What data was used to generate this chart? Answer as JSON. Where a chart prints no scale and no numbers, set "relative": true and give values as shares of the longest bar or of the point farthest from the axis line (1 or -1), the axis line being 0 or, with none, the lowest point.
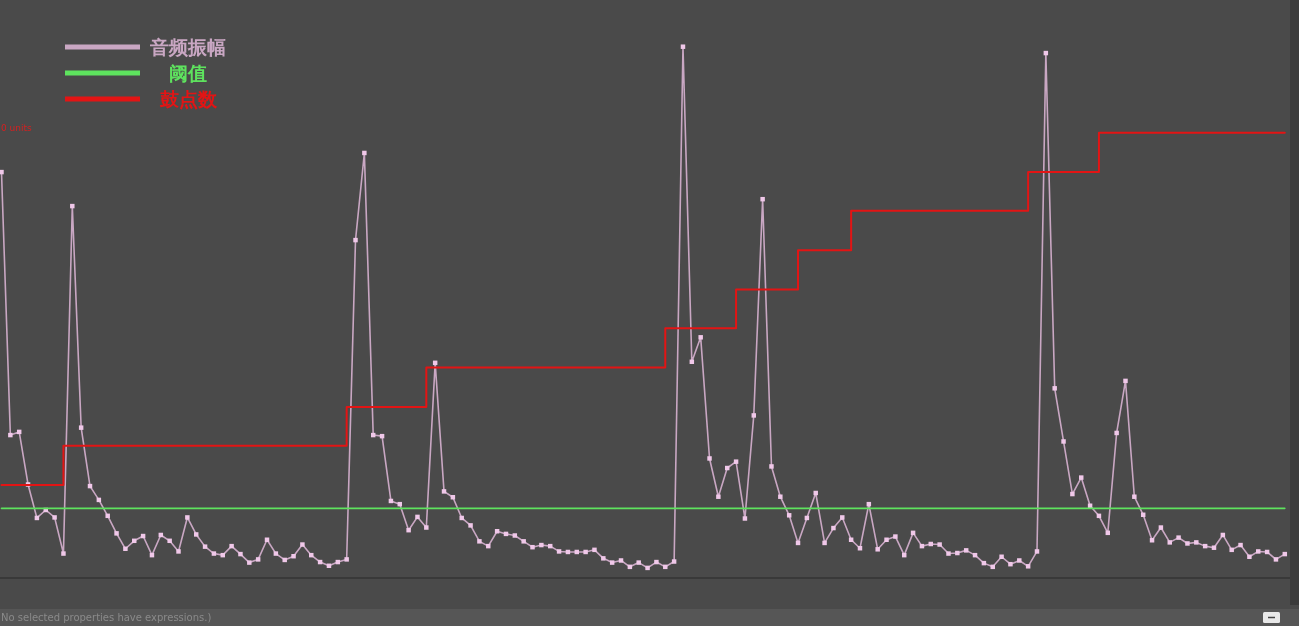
{
  "chart_data": {
    "type": "line",
    "relative": true,
    "legend": "top left",
    "annotations": [
      "0 units",
      "No selected properties have expressions.)"
    ],
    "categories": [
      null,
      null,
      null,
      null,
      null,
      null,
      null,
      null,
      null,
      null,
      null,
      null,
      null,
      null,
      null,
      null,
      null,
      null,
      null,
      null,
      null,
      null,
      null,
      null,
      null,
      null,
      null,
      null,
      null,
      null,
      null,
      null,
      null,
      null,
      null,
      null,
      null,
      null,
      null,
      null,
      null,
      null,
      null,
      null,
      null,
      null,
      null,
      null,
      null,
      null,
      null,
      null,
      null,
      null,
      null,
      null,
      null,
      null,
      null,
      null,
      null,
      null,
      null,
      null,
      null,
      null,
      null,
      null,
      null,
      null,
      null,
      null,
      null,
      null,
      null,
      null,
      null,
      null,
      null,
      null,
      null,
      null,
      null,
      null,
      null,
      null,
      null,
      null,
      null,
      null,
      null,
      null,
      null,
      null,
      null,
      null,
      null,
      null,
      null,
      null,
      null,
      null,
      null,
      null,
      null,
      null,
      null,
      null,
      null,
      null,
      null,
      null,
      null,
      null,
      null,
      null,
      null,
      null,
      null,
      null,
      null,
      null,
      null,
      null,
      null,
      null,
      null,
      null,
      null,
      null,
      null,
      null,
      null,
      null,
      null,
      null,
      null,
      null,
      null,
      null,
      null,
      null,
      null,
      null,
      null,
      null
    ],
    "series": [
      {
        "name": "音频振幅",
        "color": "#c9a7c3",
        "marker": "square",
        "values": [
          0.764,
          0.269,
          0.275,
          0.176,
          0.113,
          0.128,
          0.114,
          0.046,
          0.7,
          0.283,
          0.173,
          0.147,
          0.117,
          0.084,
          0.055,
          0.07,
          0.079,
          0.043,
          0.081,
          0.07,
          0.05,
          0.114,
          0.082,
          0.059,
          0.046,
          0.043,
          0.06,
          0.045,
          0.029,
          0.035,
          0.072,
          0.046,
          0.034,
          0.041,
          0.063,
          0.043,
          0.03,
          0.023,
          0.03,
          0.035,
          0.636,
          0.8,
          0.269,
          0.267,
          0.145,
          0.139,
          0.09,
          0.115,
          0.095,
          0.405,
          0.163,
          0.152,
          0.113,
          0.099,
          0.069,
          0.06,
          0.088,
          0.083,
          0.08,
          0.069,
          0.058,
          0.062,
          0.06,
          0.05,
          0.049,
          0.049,
          0.049,
          0.053,
          0.037,
          0.029,
          0.033,
          0.021,
          0.029,
          0.019,
          0.03,
          0.021,
          0.031,
          1,
          0.407,
          0.453,
          0.225,
          0.153,
          0.207,
          0.219,
          0.112,
          0.306,
          0.713,
          0.21,
          0.153,
          0.118,
          0.066,
          0.113,
          0.16,
          0.066,
          0.094,
          0.114,
          0.072,
          0.056,
          0.139,
          0.054,
          0.072,
          0.078,
          0.043,
          0.085,
          0.06,
          0.064,
          0.063,
          0.046,
          0.047,
          0.052,
          0.043,
          0.028,
          0.021,
          0.04,
          0.026,
          0.033,
          0.022,
          0.05,
          0.988,
          0.357,
          0.257,
          0.158,
          0.189,
          0.136,
          0.117,
          0.085,
          0.273,
          0.371,
          0.153,
          0.119,
          0.071,
          0.095,
          0.067,
          0.076,
          0.065,
          0.067,
          0.06,
          0.057,
          0.081,
          0.053,
          0.062,
          0.04,
          0.05,
          0.049,
          0.035,
          0.045
        ]
      },
      {
        "name": "阈值",
        "color": "#5ee35e",
        "values": [
          0.131,
          0.131,
          0.131,
          0.131,
          0.131,
          0.131,
          0.131,
          0.131,
          0.131,
          0.131,
          0.131,
          0.131,
          0.131,
          0.131,
          0.131,
          0.131,
          0.131,
          0.131,
          0.131,
          0.131,
          0.131,
          0.131,
          0.131,
          0.131,
          0.131,
          0.131,
          0.131,
          0.131,
          0.131,
          0.131,
          0.131,
          0.131,
          0.131,
          0.131,
          0.131,
          0.131,
          0.131,
          0.131,
          0.131,
          0.131,
          0.131,
          0.131,
          0.131,
          0.131,
          0.131,
          0.131,
          0.131,
          0.131,
          0.131,
          0.131,
          0.131,
          0.131,
          0.131,
          0.131,
          0.131,
          0.131,
          0.131,
          0.131,
          0.131,
          0.131,
          0.131,
          0.131,
          0.131,
          0.131,
          0.131,
          0.131,
          0.131,
          0.131,
          0.131,
          0.131,
          0.131,
          0.131,
          0.131,
          0.131,
          0.131,
          0.131,
          0.131,
          0.131,
          0.131,
          0.131,
          0.131,
          0.131,
          0.131,
          0.131,
          0.131,
          0.131,
          0.131,
          0.131,
          0.131,
          0.131,
          0.131,
          0.131,
          0.131,
          0.131,
          0.131,
          0.131,
          0.131,
          0.131,
          0.131,
          0.131,
          0.131,
          0.131,
          0.131,
          0.131,
          0.131,
          0.131,
          0.131,
          0.131,
          0.131,
          0.131,
          0.131,
          0.131,
          0.131,
          0.131,
          0.131,
          0.131,
          0.131,
          0.131,
          0.131,
          0.131,
          0.131,
          0.131,
          0.131,
          0.131,
          0.131,
          0.131,
          0.131,
          0.131,
          0.131,
          0.131,
          0.131,
          0.131,
          0.131,
          0.131,
          0.131,
          0.131,
          0.131,
          0.131,
          0.131,
          0.131,
          0.131,
          0.131,
          0.131,
          0.131,
          0.131,
          0.131
        ]
      },
      {
        "name": "鼓点数",
        "type": "step",
        "color": "#e31414",
        "values": [
          0.175,
          0.175,
          0.175,
          0.175,
          0.175,
          0.175,
          0.175,
          0.249,
          0.249,
          0.249,
          0.249,
          0.249,
          0.249,
          0.249,
          0.249,
          0.249,
          0.249,
          0.249,
          0.249,
          0.249,
          0.249,
          0.249,
          0.249,
          0.249,
          0.249,
          0.249,
          0.249,
          0.249,
          0.249,
          0.249,
          0.249,
          0.249,
          0.249,
          0.249,
          0.249,
          0.249,
          0.249,
          0.249,
          0.249,
          0.322,
          0.322,
          0.322,
          0.322,
          0.322,
          0.322,
          0.322,
          0.322,
          0.322,
          0.396,
          0.396,
          0.396,
          0.396,
          0.396,
          0.396,
          0.396,
          0.396,
          0.396,
          0.396,
          0.396,
          0.396,
          0.396,
          0.396,
          0.396,
          0.396,
          0.396,
          0.396,
          0.396,
          0.396,
          0.396,
          0.396,
          0.396,
          0.396,
          0.396,
          0.396,
          0.396,
          0.47,
          0.47,
          0.47,
          0.47,
          0.47,
          0.47,
          0.47,
          0.47,
          0.543,
          0.543,
          0.543,
          0.543,
          0.543,
          0.543,
          0.543,
          0.617,
          0.617,
          0.617,
          0.617,
          0.617,
          0.617,
          0.691,
          0.691,
          0.691,
          0.691,
          0.691,
          0.691,
          0.691,
          0.691,
          0.691,
          0.691,
          0.691,
          0.691,
          0.691,
          0.691,
          0.691,
          0.691,
          0.691,
          0.691,
          0.691,
          0.691,
          0.764,
          0.764,
          0.764,
          0.764,
          0.764,
          0.764,
          0.764,
          0.764,
          0.838,
          0.838,
          0.838,
          0.838,
          0.838,
          0.838,
          0.838,
          0.838,
          0.838,
          0.838,
          0.838,
          0.838,
          0.838,
          0.838,
          0.838,
          0.838,
          0.838,
          0.838,
          0.838,
          0.838,
          0.838,
          0.838
        ]
      }
    ]
  }
}
